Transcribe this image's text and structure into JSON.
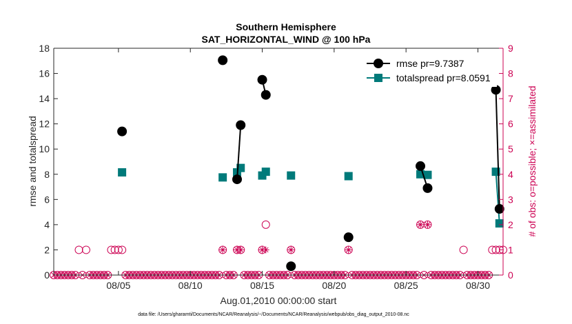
{
  "chart_data": {
    "type": "line",
    "title": "Southern Hemisphere",
    "subtitle": "SAT_HORIZONTAL_WIND @ 100 hPa",
    "xlabel": "Aug.01,2010 00:00:00 start",
    "ylabel": "rmse and totalspread",
    "ylabel_right": "# of obs: o=possible; ×=assimilated",
    "footnote": "data file: /Users/gharamti/Documents/NCAR/Reanalysis/~/Documents/NCAR/Reanalysis/webpub/obs_diag_output_2010-08.nc",
    "xlim": [
      0.5,
      31.75
    ],
    "ylim": [
      0,
      18
    ],
    "ylim_right": [
      0,
      9
    ],
    "x_ticks": [
      5,
      10,
      15,
      20,
      25,
      30
    ],
    "x_tick_labels": [
      "08/05",
      "08/10",
      "08/15",
      "08/20",
      "08/25",
      "08/30"
    ],
    "y_ticks": [
      "0",
      "2",
      "4",
      "6",
      "8",
      "10",
      "12",
      "14",
      "16",
      "18"
    ],
    "y_ticks_right": [
      "0",
      "1",
      "2",
      "3",
      "4",
      "5",
      "6",
      "7",
      "8",
      "9"
    ],
    "grid": false,
    "legend_position": "top-right",
    "series": [
      {
        "name": "rmse pr=9.7387",
        "color": "#000000",
        "marker": "circle",
        "segments": [
          [
            [
              5.25,
              11.4
            ]
          ],
          [
            [
              12.25,
              17.05
            ]
          ],
          [
            [
              13.25,
              7.6
            ],
            [
              13.5,
              11.9
            ]
          ],
          [
            [
              15.0,
              15.5
            ],
            [
              15.25,
              14.3
            ]
          ],
          [
            [
              17.0,
              0.7
            ]
          ],
          [
            [
              21.0,
              3.0
            ]
          ],
          [
            [
              26.0,
              8.65
            ],
            [
              26.5,
              6.9
            ]
          ],
          [
            [
              31.25,
              14.7
            ],
            [
              31.5,
              5.25
            ]
          ]
        ]
      },
      {
        "name": "totalspread pr=8.0591",
        "color": "#007a7a",
        "marker": "square",
        "segments": [
          [
            [
              5.25,
              8.15
            ]
          ],
          [
            [
              12.25,
              7.75
            ]
          ],
          [
            [
              13.25,
              8.15
            ],
            [
              13.5,
              8.5
            ]
          ],
          [
            [
              15.0,
              7.9
            ],
            [
              15.25,
              8.2
            ]
          ],
          [
            [
              17.0,
              7.9
            ]
          ],
          [
            [
              21.0,
              7.85
            ]
          ],
          [
            [
              26.0,
              8.0
            ],
            [
              26.5,
              7.95
            ]
          ],
          [
            [
              31.25,
              8.2
            ],
            [
              31.5,
              4.1
            ]
          ]
        ]
      }
    ],
    "obs_possible": [
      [
        2.25,
        1
      ],
      [
        2.75,
        1
      ],
      [
        4.5,
        1
      ],
      [
        4.75,
        1
      ],
      [
        5.0,
        1
      ],
      [
        5.25,
        1
      ],
      [
        12.25,
        1
      ],
      [
        13.25,
        1
      ],
      [
        13.5,
        1
      ],
      [
        15.0,
        1
      ],
      [
        15.25,
        2
      ],
      [
        17.0,
        1
      ],
      [
        21.0,
        1
      ],
      [
        26.0,
        2
      ],
      [
        26.5,
        2
      ],
      [
        29.0,
        1
      ],
      [
        31.0,
        1
      ],
      [
        31.25,
        1
      ],
      [
        31.5,
        1
      ],
      [
        31.75,
        1
      ]
    ],
    "obs_assimilated": [
      [
        12.25,
        1
      ],
      [
        13.25,
        1
      ],
      [
        13.5,
        1
      ],
      [
        15.0,
        1
      ],
      [
        15.25,
        1
      ],
      [
        17.0,
        1
      ],
      [
        21.0,
        1
      ],
      [
        26.0,
        2
      ],
      [
        26.5,
        2
      ]
    ],
    "zero_count_marker_range": [
      0.5,
      31.75
    ],
    "zero_count_marker_step": 0.25
  }
}
